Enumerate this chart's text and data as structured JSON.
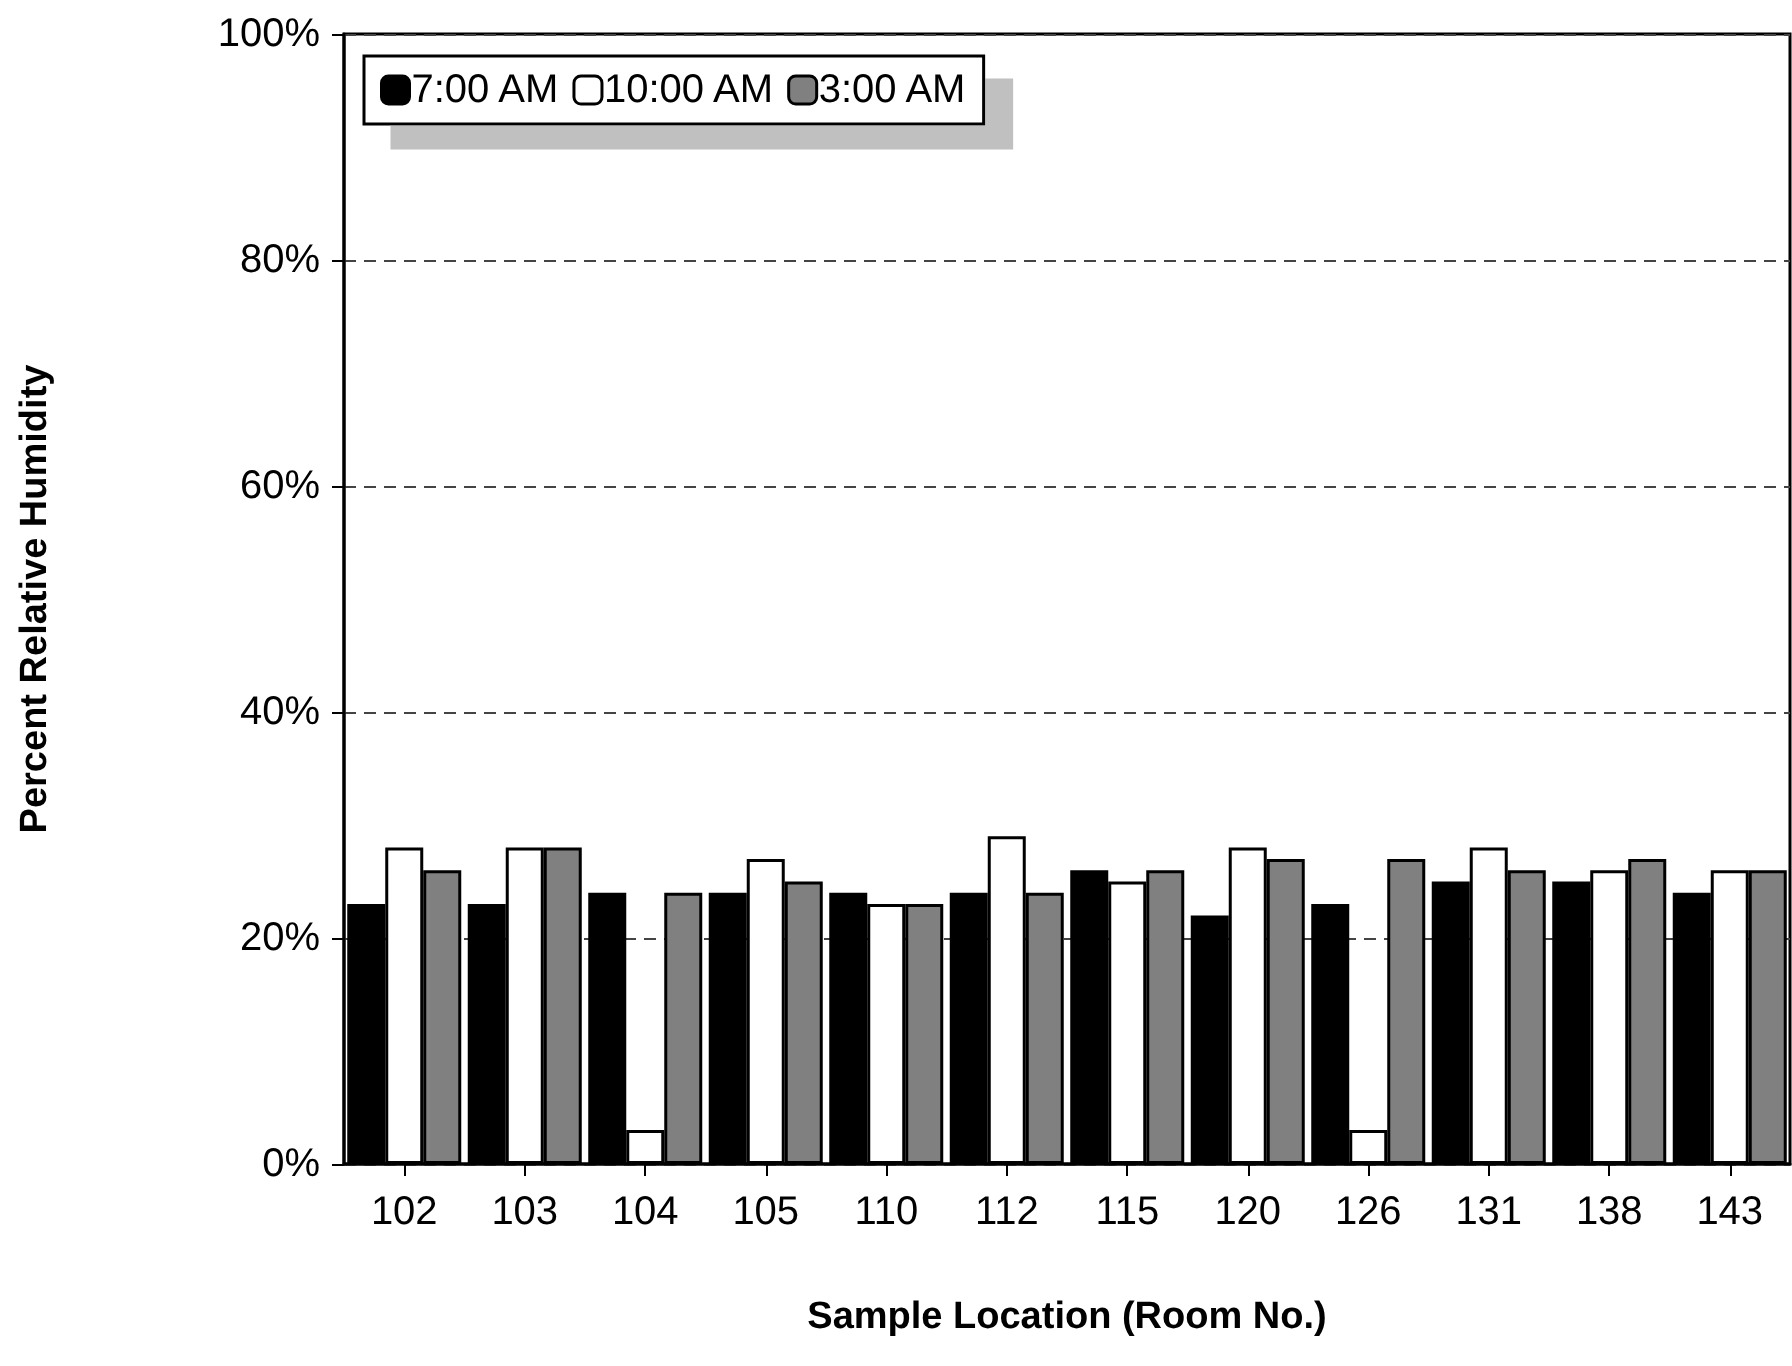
{
  "chart_data": {
    "type": "bar",
    "xlabel": "Sample Location (Room No.)",
    "ylabel": "Percent Relative Humidity",
    "categories": [
      "102",
      "103",
      "104",
      "105",
      "110",
      "112",
      "115",
      "120",
      "126",
      "131",
      "138",
      "143"
    ],
    "series": [
      {
        "name": "7:00 AM",
        "color": "#000000",
        "values": [
          23,
          23,
          24,
          24,
          24,
          24,
          26,
          22,
          23,
          25,
          25,
          24
        ]
      },
      {
        "name": "10:00 AM",
        "color": "#ffffff",
        "values": [
          28,
          28,
          3,
          27,
          23,
          29,
          25,
          28,
          3,
          28,
          26,
          26
        ]
      },
      {
        "name": "3:00 AM",
        "color": "#808080",
        "values": [
          26,
          28,
          24,
          25,
          23,
          24,
          26,
          27,
          27,
          26,
          27,
          26
        ]
      }
    ],
    "ylim": [
      0,
      100
    ],
    "yticks": [
      {
        "value": 0,
        "label": "0%"
      },
      {
        "value": 20,
        "label": "20%"
      },
      {
        "value": 40,
        "label": "40%"
      },
      {
        "value": 60,
        "label": "60%"
      },
      {
        "value": 80,
        "label": "80%"
      },
      {
        "value": 100,
        "label": "100%"
      }
    ],
    "grid": "y",
    "legend": "top left"
  }
}
